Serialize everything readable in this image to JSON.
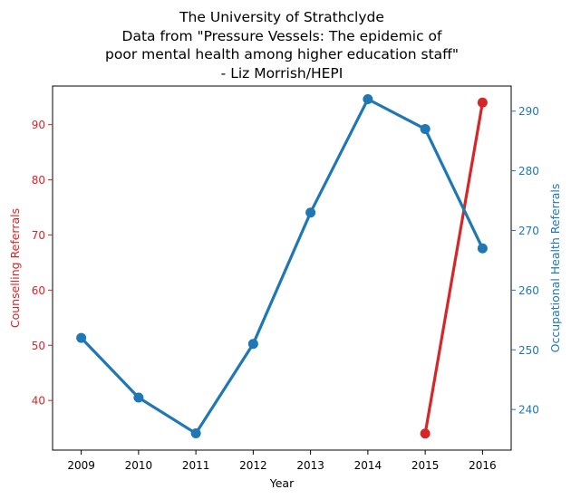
{
  "chart_data": {
    "type": "line",
    "title_lines": [
      "The University of Strathclyde",
      "Data from \"Pressure Vessels: The epidemic of",
      "poor mental health among higher education staff\"",
      "- Liz Morrish/HEPI"
    ],
    "xlabel": "Year",
    "ylabel_left": "Counselling Referrals",
    "ylabel_right": "Occupational Health Referrals",
    "x_ticks": [
      "2009",
      "2010",
      "2011",
      "2012",
      "2013",
      "2014",
      "2015",
      "2016"
    ],
    "x_range": [
      2008.5,
      2016.5
    ],
    "y_left_ticks": [
      40,
      50,
      60,
      70,
      80,
      90
    ],
    "y_left_range": [
      31,
      97
    ],
    "y_right_ticks": [
      240,
      250,
      260,
      270,
      280,
      290
    ],
    "y_right_range": [
      233.2,
      294.2
    ],
    "grid": false,
    "legend": "none",
    "series": [
      {
        "axis": "left",
        "color": "#d62728",
        "x": [
          2015,
          2016
        ],
        "values": [
          34,
          94
        ]
      },
      {
        "axis": "right",
        "color": "#1f77b4",
        "x": [
          2009,
          2010,
          2011,
          2012,
          2013,
          2014,
          2015,
          2016
        ],
        "values": [
          252,
          242,
          236,
          251,
          273,
          292,
          287,
          267
        ]
      }
    ]
  }
}
